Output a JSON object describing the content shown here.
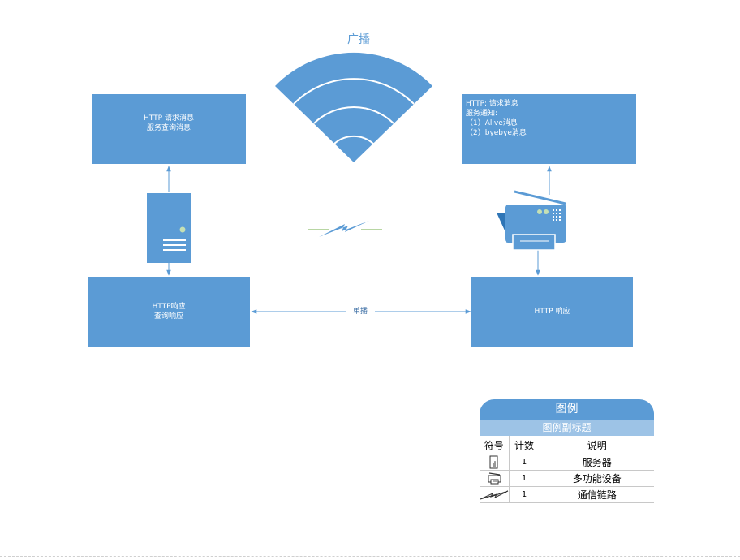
{
  "colors": {
    "primary": "#5b9bd5",
    "light": "#9dc3e6",
    "link": "#70ad47",
    "line": "#5b9bd5"
  },
  "broadcast": {
    "label": "广播",
    "icon": "wifi-icon"
  },
  "unicast": {
    "label": "单播"
  },
  "nodes": {
    "top_left": {
      "lines": [
        "HTTP 请求消息",
        "服务查询消息"
      ]
    },
    "top_right": {
      "lines": [
        "HTTP: 请求消息",
        "服务通知:",
        "（1）Alive消息",
        "（2）byebye消息"
      ]
    },
    "bottom_left": {
      "lines": [
        "HTTP响应",
        "查询响应"
      ]
    },
    "bottom_right": {
      "lines": [
        "HTTP 响应"
      ]
    }
  },
  "devices": {
    "server": "server-icon",
    "printer": "multifunction-device-icon",
    "link": "comm-link-icon"
  },
  "legend": {
    "title": "图例",
    "subtitle": "图例副标题",
    "headers": {
      "symbol": "符号",
      "count": "计数",
      "desc": "说明"
    },
    "rows": [
      {
        "icon": "server-icon",
        "count": "1",
        "desc": "服务器"
      },
      {
        "icon": "multifunction-device-icon",
        "count": "1",
        "desc": "多功能设备"
      },
      {
        "icon": "comm-link-icon",
        "count": "1",
        "desc": "通信链路"
      }
    ]
  }
}
